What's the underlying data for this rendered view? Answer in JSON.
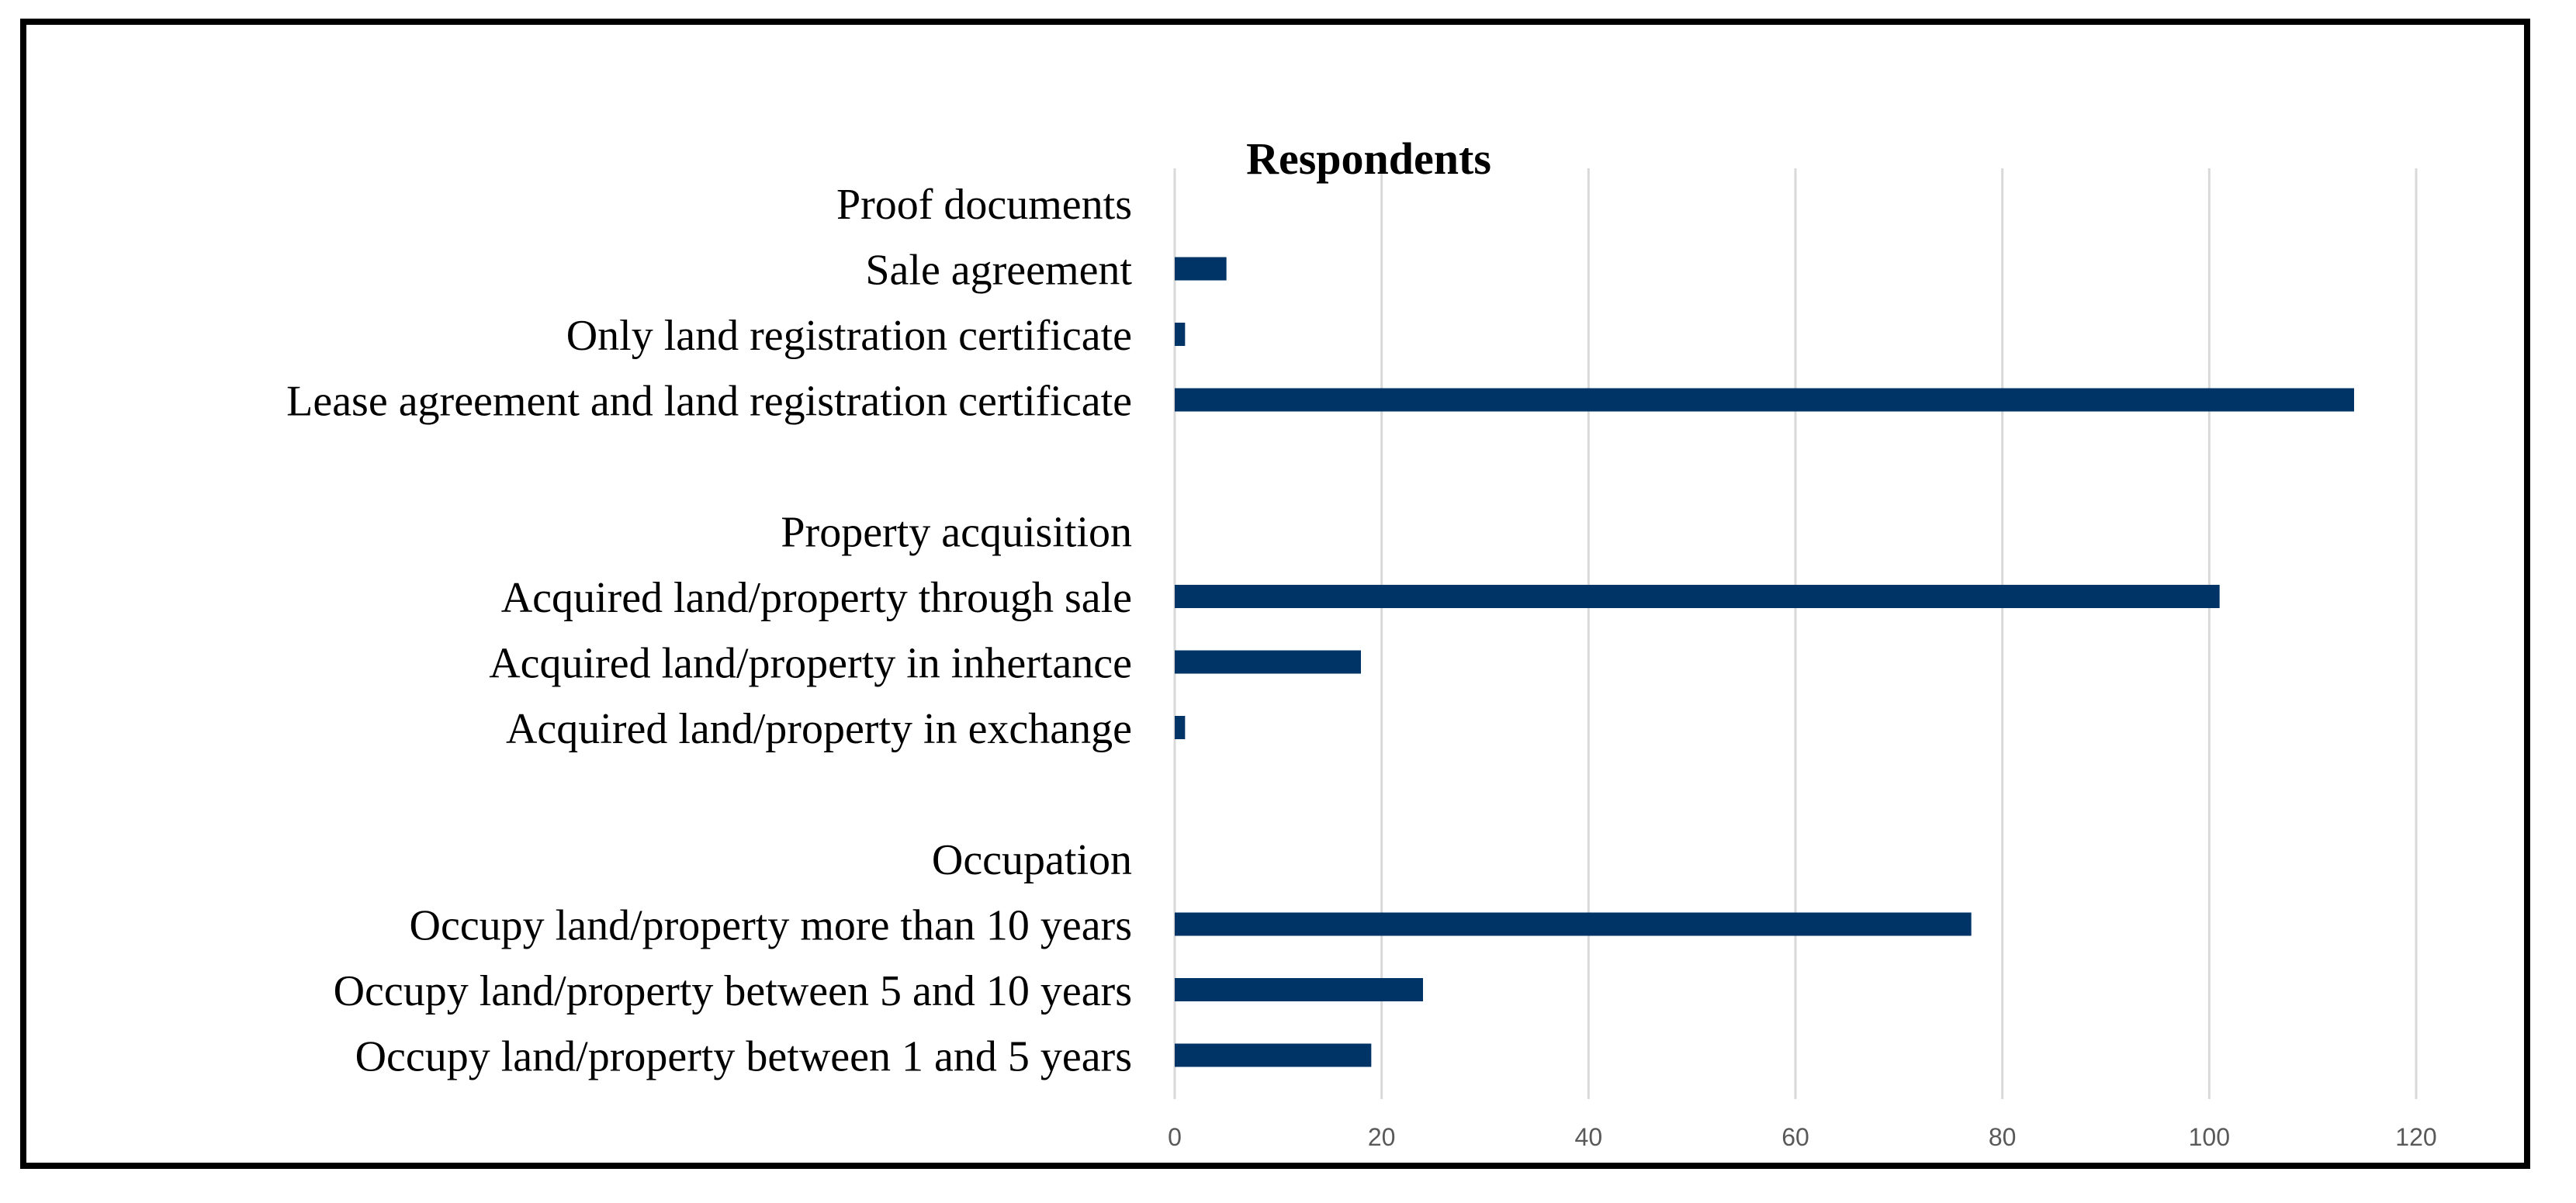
{
  "chart_data": {
    "type": "bar",
    "orientation": "horizontal",
    "title": "Respondents",
    "xlabel": "",
    "ylabel": "",
    "xlim": [
      0,
      120
    ],
    "x_ticks": [
      0,
      20,
      40,
      60,
      80,
      100,
      120
    ],
    "grid": true,
    "legend": "none",
    "bar_color": "#003366",
    "categories": [
      {
        "label": "Proof documents",
        "value": null,
        "header": true
      },
      {
        "label": "Sale agreement",
        "value": 5
      },
      {
        "label": "Only land registration certificate",
        "value": 1
      },
      {
        "label": "Lease agreement and land registration certificate",
        "value": 114
      },
      {
        "label": "",
        "value": null,
        "header": true
      },
      {
        "label": "Property acquisition",
        "value": null,
        "header": true
      },
      {
        "label": "Acquired land/property through sale",
        "value": 101
      },
      {
        "label": "Acquired land/property in inhertance",
        "value": 18
      },
      {
        "label": "Acquired land/property in exchange",
        "value": 1
      },
      {
        "label": "",
        "value": null,
        "header": true
      },
      {
        "label": "Occupation",
        "value": null,
        "header": true
      },
      {
        "label": "Occupy land/property more than 10 years",
        "value": 77
      },
      {
        "label": "Occupy land/property between 5 and 10 years",
        "value": 24
      },
      {
        "label": "Occupy land/property between 1 and 5 years",
        "value": 19
      }
    ]
  }
}
